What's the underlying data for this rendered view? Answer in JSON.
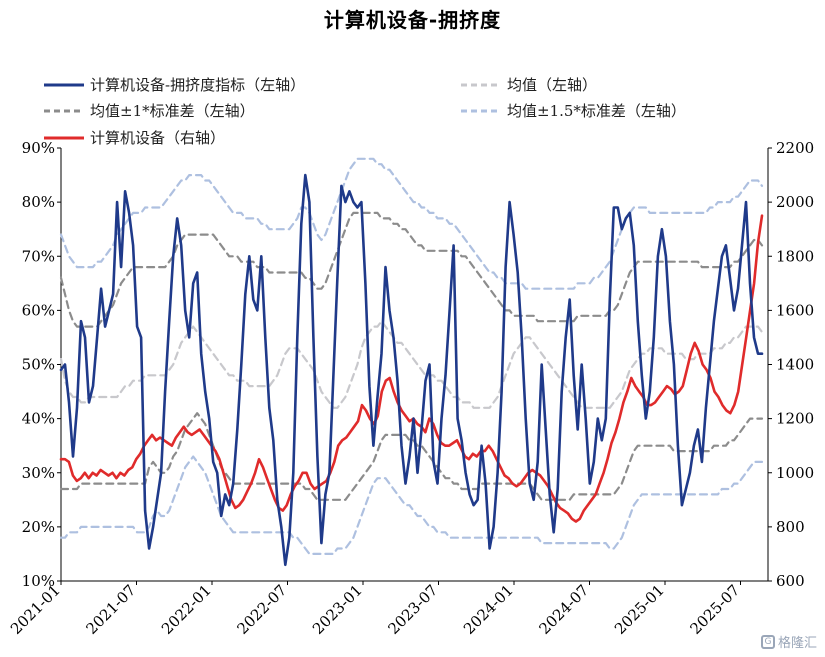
{
  "chart_data": {
    "type": "line",
    "title": "计算机设备-拥挤度",
    "x_labels": [
      "2021-01",
      "2021-07",
      "2022-01",
      "2022-07",
      "2023-01",
      "2023-07",
      "2024-01",
      "2024-07",
      "2025-01",
      "2025-07"
    ],
    "left_axis": {
      "ylim": [
        10,
        90
      ],
      "ticks": [
        "10%",
        "20%",
        "30%",
        "40%",
        "50%",
        "60%",
        "70%",
        "80%",
        "90%"
      ]
    },
    "right_axis": {
      "ylim": [
        600,
        2200
      ],
      "ticks": [
        "600",
        "800",
        "1000",
        "1200",
        "1400",
        "1600",
        "1800",
        "2000",
        "2200"
      ]
    },
    "grid": false,
    "legend": [
      {
        "name": "计算机设备-拥挤度指标（左轴）",
        "color": "#1f3a8a",
        "style": "solid"
      },
      {
        "name": "均值（左轴）",
        "color": "#c8c8cc",
        "style": "dashed"
      },
      {
        "name": "均值±1*标准差（左轴）",
        "color": "#8c8c8c",
        "style": "dashed"
      },
      {
        "name": "均值±1.5*标准差（左轴）",
        "color": "#aec0e0",
        "style": "dashed"
      },
      {
        "name": "计算机设备（右轴）",
        "color": "#e02b2b",
        "style": "solid"
      }
    ],
    "series": [
      {
        "name": "计算机设备-拥挤度指标（左轴）",
        "axis": "left",
        "color": "#1f3a8a",
        "values": [
          49,
          50,
          43,
          33,
          42,
          58,
          55,
          43,
          46,
          55,
          64,
          57,
          60,
          63,
          80,
          68,
          82,
          78,
          72,
          57,
          55,
          23,
          16,
          20,
          25,
          30,
          45,
          58,
          70,
          77,
          72,
          60,
          55,
          65,
          67,
          52,
          45,
          40,
          32,
          30,
          22,
          26,
          24,
          28,
          38,
          50,
          63,
          70,
          62,
          60,
          70,
          55,
          42,
          36,
          25,
          20,
          13,
          18,
          30,
          55,
          76,
          85,
          80,
          55,
          33,
          17,
          26,
          30,
          48,
          66,
          83,
          80,
          82,
          80,
          79,
          80,
          65,
          46,
          35,
          44,
          52,
          68,
          60,
          55,
          47,
          35,
          28,
          33,
          40,
          30,
          38,
          47,
          50,
          32,
          28,
          40,
          48,
          60,
          72,
          40,
          36,
          30,
          26,
          24,
          25,
          35,
          28,
          16,
          20,
          30,
          45,
          68,
          80,
          74,
          67,
          55,
          40,
          28,
          25,
          32,
          50,
          38,
          26,
          19,
          27,
          45,
          55,
          62,
          48,
          38,
          50,
          40,
          28,
          32,
          40,
          36,
          40,
          62,
          79,
          79,
          75,
          77,
          78,
          72,
          58,
          48,
          40,
          45,
          55,
          70,
          75,
          70,
          58,
          50,
          35,
          24,
          27,
          30,
          35,
          38,
          32,
          42,
          50,
          58,
          64,
          70,
          72,
          66,
          60,
          64,
          72,
          80,
          65,
          55,
          52,
          52
        ]
      },
      {
        "name": "均值（左轴）",
        "axis": "left",
        "color": "#c8c8cc",
        "values": [
          51,
          47,
          45,
          44,
          44,
          43,
          43,
          44,
          44,
          44,
          44,
          44,
          44,
          44,
          44,
          45,
          46,
          46,
          47,
          47,
          47,
          48,
          48,
          48,
          48,
          48,
          48,
          49,
          50,
          52,
          54,
          55,
          56,
          57,
          56,
          55,
          54,
          53,
          52,
          51,
          50,
          49,
          48,
          48,
          47,
          47,
          47,
          46,
          46,
          46,
          46,
          46,
          46,
          47,
          48,
          50,
          52,
          53,
          53,
          53,
          52,
          51,
          50,
          49,
          47,
          45,
          44,
          43,
          42,
          42,
          43,
          44,
          46,
          48,
          50,
          53,
          55,
          56,
          57,
          57,
          58,
          57,
          56,
          55,
          54,
          54,
          53,
          52,
          51,
          50,
          49,
          48,
          48,
          48,
          47,
          47,
          46,
          45,
          44,
          44,
          43,
          43,
          43,
          42,
          42,
          42,
          42,
          42,
          43,
          44,
          46,
          48,
          50,
          52,
          53,
          54,
          55,
          55,
          54,
          53,
          52,
          51,
          50,
          49,
          48,
          47,
          46,
          45,
          44,
          43,
          42,
          42,
          42,
          42,
          42,
          42,
          42,
          42,
          43,
          44,
          45,
          47,
          49,
          50,
          51,
          52,
          52,
          53,
          53,
          53,
          53,
          52,
          52,
          52,
          52,
          52,
          51,
          51,
          51,
          52,
          52,
          52,
          52,
          53,
          53,
          53,
          54,
          54,
          55,
          55,
          56,
          57,
          57,
          57,
          57,
          56
        ]
      },
      {
        "name": "均值+1*标准差（左轴）",
        "axis": "left",
        "color": "#8c8c8c",
        "values": [
          66,
          63,
          60,
          58,
          57,
          57,
          57,
          57,
          57,
          57,
          58,
          59,
          60,
          61,
          63,
          65,
          66,
          67,
          68,
          68,
          68,
          68,
          68,
          68,
          68,
          68,
          68,
          69,
          70,
          72,
          73,
          74,
          74,
          74,
          74,
          74,
          74,
          74,
          74,
          73,
          72,
          71,
          70,
          70,
          70,
          69,
          69,
          69,
          69,
          68,
          68,
          68,
          67,
          67,
          67,
          67,
          67,
          67,
          67,
          67,
          67,
          66,
          66,
          65,
          64,
          64,
          65,
          67,
          69,
          71,
          73,
          75,
          77,
          78,
          78,
          78,
          78,
          78,
          78,
          78,
          77,
          77,
          77,
          76,
          76,
          75,
          75,
          74,
          73,
          72,
          72,
          71,
          71,
          71,
          71,
          71,
          71,
          71,
          71,
          71,
          70,
          70,
          69,
          68,
          67,
          66,
          65,
          64,
          63,
          62,
          61,
          60,
          60,
          59,
          59,
          59,
          59,
          59,
          59,
          58,
          58,
          58,
          58,
          58,
          58,
          58,
          58,
          58,
          58,
          59,
          59,
          59,
          59,
          59,
          59,
          59,
          59,
          60,
          60,
          61,
          63,
          65,
          67,
          68,
          69,
          69,
          69,
          69,
          69,
          69,
          69,
          69,
          69,
          69,
          69,
          69,
          69,
          69,
          69,
          69,
          68,
          68,
          68,
          68,
          68,
          68,
          68,
          68,
          69,
          69,
          70,
          71,
          72,
          73,
          73,
          72
        ]
      },
      {
        "name": "均值-1*标准差（左轴）",
        "axis": "left",
        "color": "#8c8c8c",
        "values": [
          27,
          27,
          27,
          27,
          27,
          28,
          28,
          28,
          28,
          28,
          28,
          28,
          28,
          28,
          28,
          28,
          28,
          28,
          28,
          28,
          28,
          28,
          31,
          32,
          31,
          30,
          30,
          31,
          33,
          34,
          36,
          38,
          39,
          40,
          41,
          40,
          39,
          37,
          35,
          33,
          31,
          30,
          29,
          28,
          28,
          28,
          28,
          28,
          28,
          28,
          28,
          28,
          28,
          28,
          28,
          28,
          28,
          28,
          28,
          28,
          28,
          27,
          27,
          26,
          25,
          25,
          25,
          25,
          25,
          25,
          25,
          25,
          26,
          27,
          28,
          29,
          30,
          31,
          32,
          34,
          36,
          37,
          37,
          37,
          37,
          37,
          37,
          36,
          36,
          35,
          35,
          34,
          33,
          32,
          31,
          30,
          29,
          29,
          28,
          28,
          27,
          27,
          27,
          27,
          27,
          28,
          28,
          28,
          28,
          28,
          28,
          28,
          28,
          28,
          28,
          28,
          28,
          28,
          27,
          26,
          25,
          25,
          25,
          25,
          25,
          25,
          25,
          25,
          26,
          26,
          26,
          26,
          26,
          26,
          26,
          26,
          26,
          26,
          26,
          27,
          28,
          30,
          32,
          34,
          35,
          35,
          35,
          35,
          35,
          35,
          35,
          35,
          35,
          34,
          34,
          34,
          34,
          34,
          34,
          34,
          34,
          34,
          34,
          35,
          35,
          35,
          35,
          36,
          36,
          37,
          38,
          39,
          40,
          40,
          40,
          40
        ]
      },
      {
        "name": "均值+1.5*标准差（左轴）",
        "axis": "left",
        "color": "#aec0e0",
        "values": [
          74,
          72,
          70,
          69,
          68,
          68,
          68,
          68,
          68,
          69,
          69,
          70,
          71,
          72,
          74,
          75,
          76,
          77,
          78,
          78,
          78,
          79,
          79,
          79,
          79,
          79,
          80,
          81,
          82,
          83,
          84,
          84,
          85,
          85,
          85,
          85,
          84,
          84,
          83,
          82,
          81,
          80,
          79,
          78,
          78,
          78,
          77,
          77,
          77,
          77,
          76,
          76,
          75,
          75,
          75,
          75,
          75,
          75,
          76,
          77,
          79,
          79,
          78,
          76,
          74,
          73,
          74,
          76,
          78,
          80,
          82,
          84,
          86,
          87,
          88,
          88,
          88,
          88,
          88,
          87,
          87,
          86,
          86,
          85,
          84,
          83,
          82,
          81,
          80,
          80,
          79,
          79,
          78,
          78,
          77,
          77,
          77,
          76,
          76,
          75,
          74,
          73,
          72,
          71,
          70,
          69,
          68,
          67,
          67,
          66,
          66,
          65,
          65,
          65,
          65,
          65,
          64,
          64,
          64,
          64,
          64,
          64,
          64,
          64,
          64,
          64,
          64,
          64,
          64,
          65,
          65,
          65,
          65,
          66,
          66,
          67,
          68,
          69,
          71,
          73,
          75,
          77,
          78,
          79,
          79,
          79,
          79,
          78,
          78,
          78,
          78,
          78,
          78,
          78,
          78,
          78,
          78,
          78,
          78,
          78,
          78,
          78,
          79,
          79,
          80,
          80,
          80,
          80,
          81,
          81,
          82,
          83,
          84,
          84,
          84,
          83
        ]
      },
      {
        "name": "均值-1.5*标准差（左轴）",
        "axis": "left",
        "color": "#aec0e0",
        "values": [
          18,
          18,
          19,
          19,
          19,
          20,
          20,
          20,
          20,
          20,
          20,
          20,
          20,
          20,
          20,
          20,
          20,
          20,
          20,
          19,
          19,
          19,
          20,
          22,
          23,
          22,
          22,
          23,
          25,
          27,
          29,
          31,
          32,
          33,
          32,
          31,
          30,
          28,
          26,
          24,
          22,
          21,
          20,
          19,
          19,
          19,
          19,
          19,
          19,
          19,
          19,
          19,
          19,
          19,
          19,
          19,
          19,
          19,
          18,
          18,
          17,
          16,
          15,
          15,
          15,
          15,
          15,
          15,
          15,
          16,
          16,
          16,
          17,
          18,
          20,
          22,
          24,
          26,
          28,
          29,
          29,
          29,
          28,
          27,
          26,
          25,
          24,
          24,
          23,
          22,
          22,
          21,
          20,
          20,
          19,
          19,
          19,
          18,
          18,
          18,
          18,
          18,
          18,
          18,
          18,
          18,
          18,
          18,
          18,
          18,
          18,
          18,
          18,
          18,
          18,
          18,
          18,
          18,
          18,
          18,
          17,
          17,
          17,
          17,
          17,
          17,
          17,
          17,
          17,
          17,
          17,
          17,
          17,
          17,
          17,
          17,
          17,
          16,
          16,
          17,
          18,
          20,
          22,
          24,
          25,
          26,
          26,
          26,
          26,
          26,
          26,
          26,
          26,
          26,
          26,
          26,
          26,
          26,
          26,
          26,
          26,
          26,
          26,
          26,
          26,
          27,
          27,
          27,
          28,
          28,
          29,
          30,
          31,
          32,
          32,
          32
        ]
      },
      {
        "name": "计算机设备（右轴）",
        "axis": "right",
        "color": "#e02b2b",
        "values": [
          1050,
          1050,
          1040,
          990,
          970,
          980,
          1000,
          980,
          1000,
          990,
          1010,
          1000,
          990,
          1000,
          980,
          1000,
          990,
          1010,
          1020,
          1050,
          1070,
          1100,
          1120,
          1140,
          1120,
          1130,
          1120,
          1110,
          1100,
          1130,
          1150,
          1170,
          1150,
          1140,
          1150,
          1160,
          1140,
          1120,
          1100,
          1080,
          1050,
          1000,
          950,
          900,
          870,
          880,
          900,
          930,
          960,
          1000,
          1050,
          1020,
          980,
          940,
          900,
          870,
          860,
          880,
          920,
          950,
          970,
          1000,
          1000,
          960,
          940,
          950,
          960,
          970,
          1000,
          1040,
          1100,
          1120,
          1130,
          1150,
          1170,
          1190,
          1250,
          1230,
          1200,
          1180,
          1210,
          1300,
          1340,
          1350,
          1300,
          1260,
          1230,
          1210,
          1190,
          1200,
          1180,
          1170,
          1150,
          1200,
          1180,
          1140,
          1110,
          1100,
          1100,
          1110,
          1120,
          1090,
          1060,
          1050,
          1070,
          1060,
          1080,
          1080,
          1100,
          1080,
          1050,
          1020,
          990,
          980,
          960,
          950,
          960,
          980,
          1000,
          1010,
          1000,
          990,
          970,
          950,
          920,
          890,
          870,
          860,
          850,
          830,
          820,
          830,
          860,
          880,
          900,
          920,
          960,
          1000,
          1050,
          1110,
          1150,
          1200,
          1260,
          1300,
          1350,
          1320,
          1300,
          1280,
          1250,
          1250,
          1260,
          1280,
          1300,
          1320,
          1310,
          1290,
          1300,
          1320,
          1380,
          1440,
          1480,
          1450,
          1400,
          1380,
          1350,
          1300,
          1280,
          1250,
          1230,
          1220,
          1250,
          1300,
          1400,
          1500,
          1600,
          1700,
          1850,
          1950
        ]
      }
    ]
  }
}
